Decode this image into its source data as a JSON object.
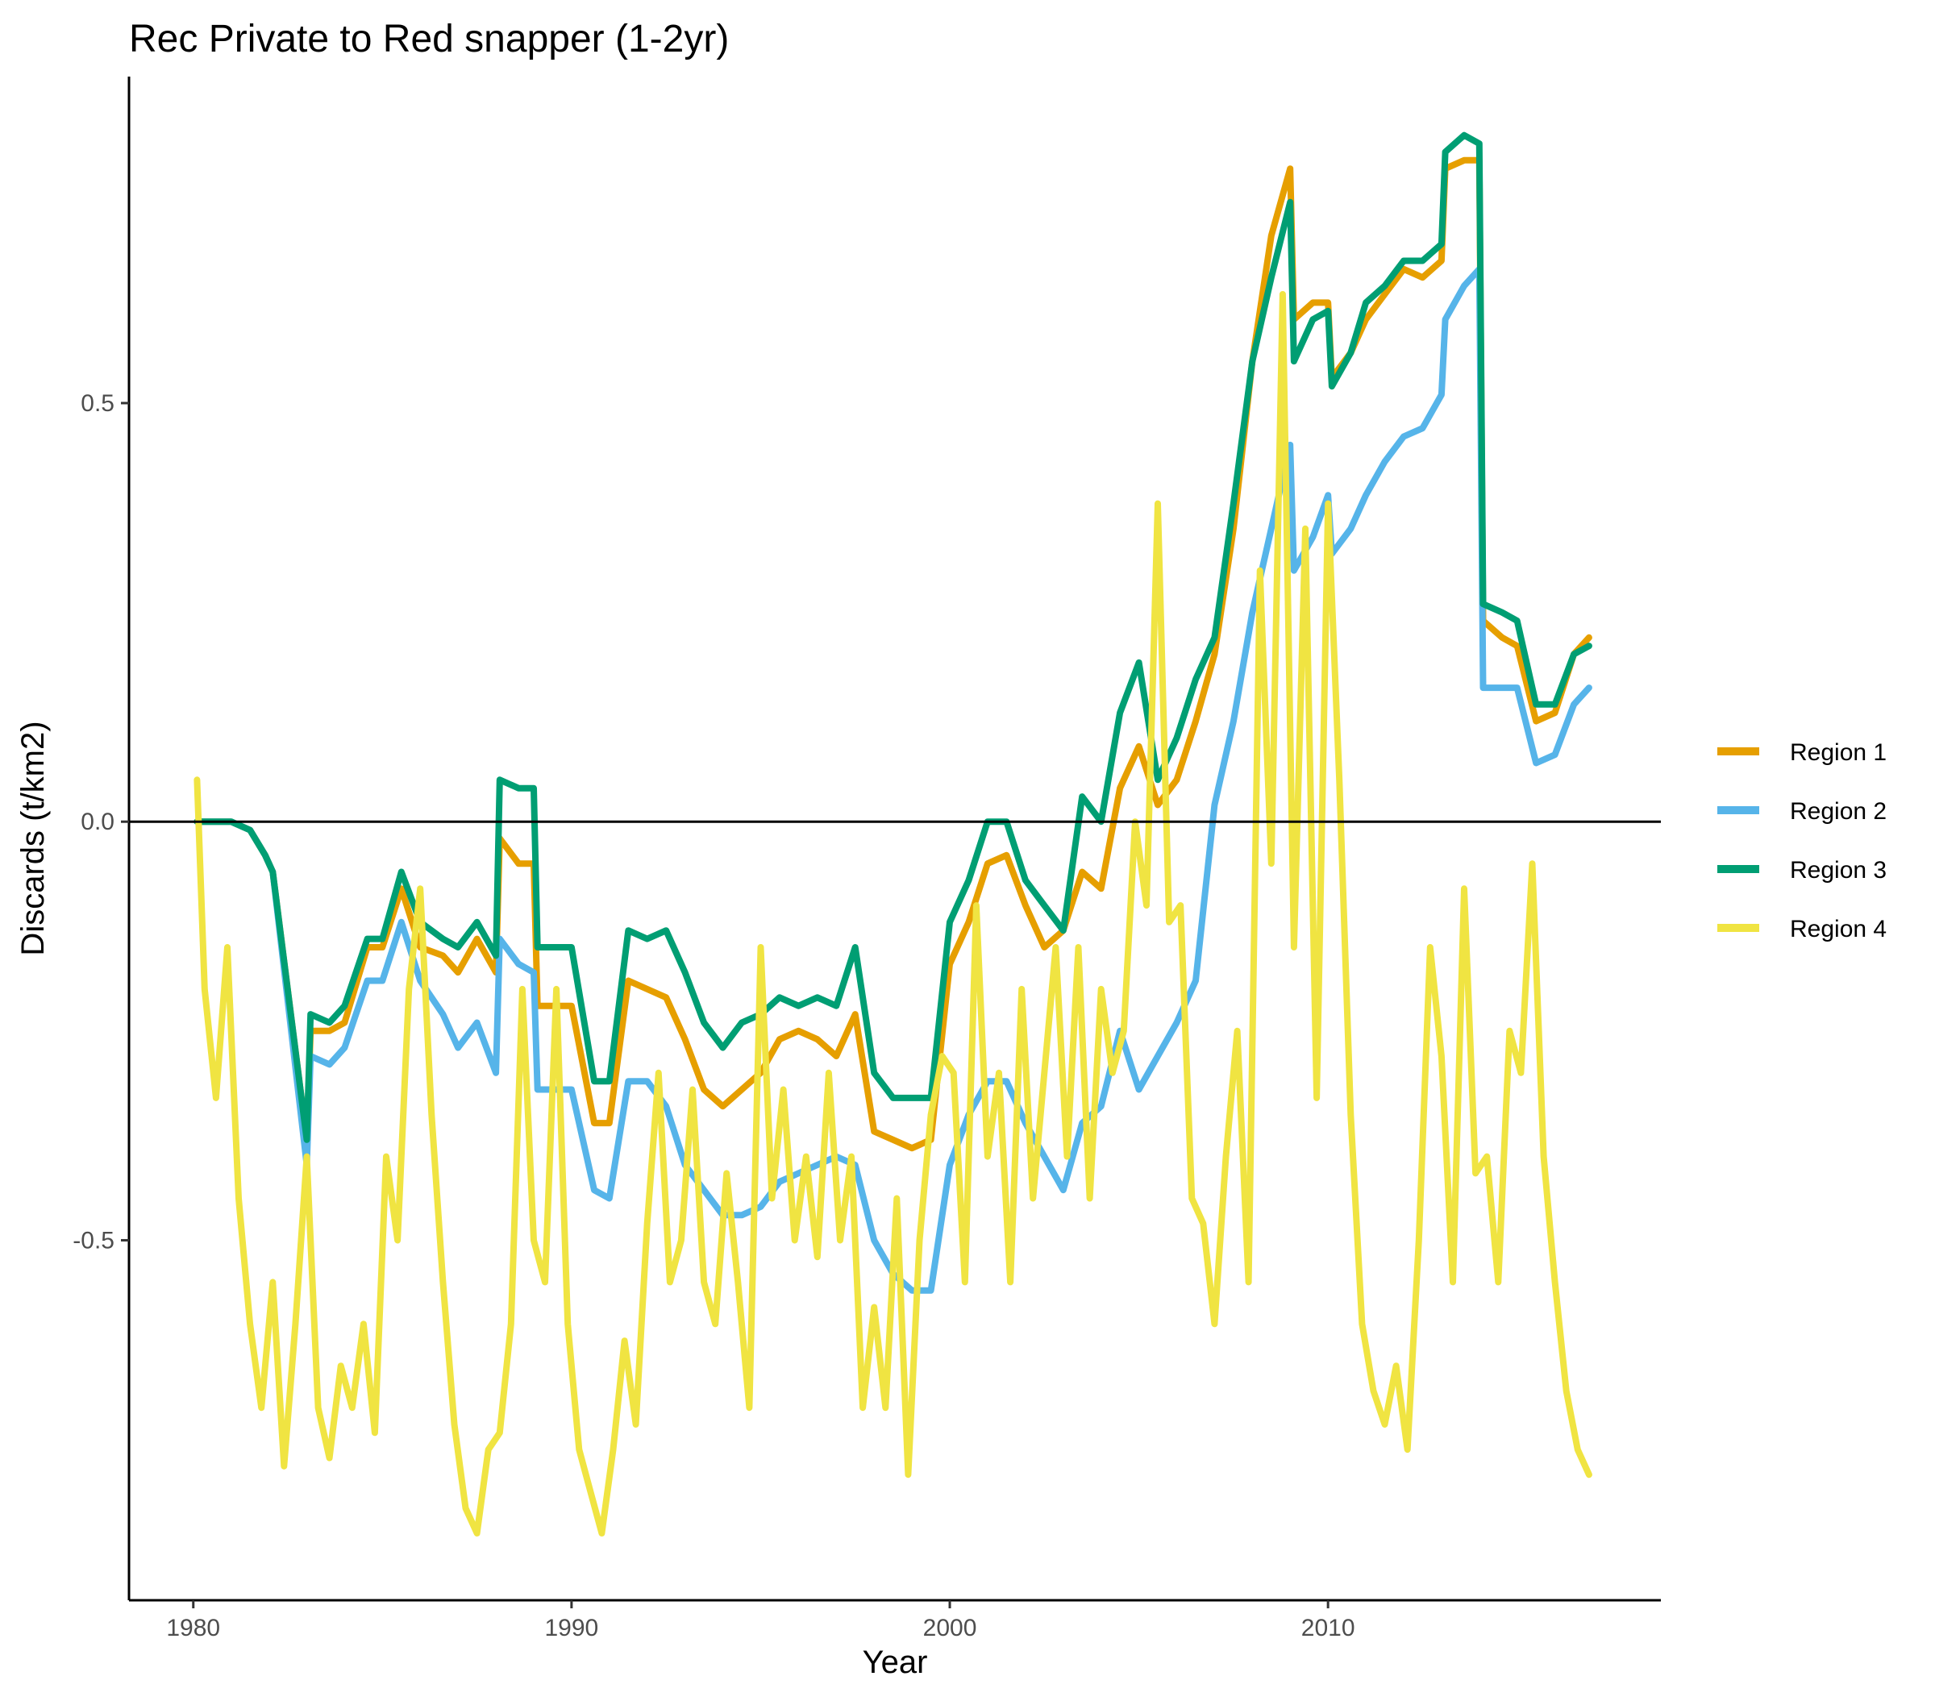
{
  "chart_data": {
    "type": "line",
    "title": "Rec Private to Red snapper (1-2yr)",
    "xlabel": "Year",
    "ylabel": "Discards (t/km2)",
    "xlim": [
      1978.3,
      2018.8
    ],
    "ylim": [
      -0.93,
      0.89
    ],
    "x_ticks": [
      1980,
      1990,
      2000,
      2010
    ],
    "x_tick_labels": [
      "1980",
      "1990",
      "2000",
      "2010"
    ],
    "y_ticks": [
      -0.5,
      0.0,
      0.5
    ],
    "y_tick_labels": [
      "-0.5",
      "0.0",
      "0.5"
    ],
    "zero_line": true,
    "grid": false,
    "legend_position": "right",
    "colors": {
      "Region 1": "#E69F00",
      "Region 2": "#56B4E9",
      "Region 3": "#009E73",
      "Region 4": "#F0E442"
    },
    "series": [
      {
        "name": "Region 1",
        "x": [
          1980.1,
          1980.5,
          1981.0,
          1981.5,
          1981.9,
          1982.1,
          1983.0,
          1983.1,
          1983.6,
          1984.0,
          1984.6,
          1985.0,
          1985.5,
          1986.0,
          1986.6,
          1987.0,
          1987.5,
          1988.0,
          1988.1,
          1988.6,
          1989.0,
          1989.1,
          1989.6,
          1990.0,
          1990.6,
          1991.0,
          1991.5,
          1992.0,
          1992.5,
          1993.0,
          1993.5,
          1994.0,
          1994.5,
          1995.0,
          1995.5,
          1996.0,
          1996.5,
          1997.0,
          1997.5,
          1998.0,
          1998.5,
          1999.0,
          1999.5,
          2000.0,
          2000.5,
          2001.0,
          2001.5,
          2002.0,
          2002.5,
          2003.0,
          2003.5,
          2004.0,
          2004.5,
          2005.0,
          2005.5,
          2006.0,
          2006.5,
          2007.0,
          2007.5,
          2008.0,
          2008.5,
          2009.0,
          2009.1,
          2009.6,
          2010.0,
          2010.1,
          2010.6,
          2011.0,
          2011.5,
          2012.0,
          2012.5,
          2013.0,
          2013.1,
          2013.6,
          2014.0,
          2014.1,
          2014.6,
          2015.0,
          2015.5,
          2016.0,
          2016.5,
          2016.9
        ],
        "y": [
          0.0,
          0.0,
          0.0,
          -0.01,
          -0.04,
          -0.06,
          -0.38,
          -0.25,
          -0.25,
          -0.24,
          -0.15,
          -0.15,
          -0.08,
          -0.15,
          -0.16,
          -0.18,
          -0.14,
          -0.18,
          -0.02,
          -0.05,
          -0.05,
          -0.22,
          -0.22,
          -0.22,
          -0.36,
          -0.36,
          -0.19,
          -0.2,
          -0.21,
          -0.26,
          -0.32,
          -0.34,
          -0.32,
          -0.3,
          -0.26,
          -0.25,
          -0.26,
          -0.28,
          -0.23,
          -0.37,
          -0.38,
          -0.39,
          -0.38,
          -0.17,
          -0.12,
          -0.05,
          -0.04,
          -0.1,
          -0.15,
          -0.13,
          -0.06,
          -0.08,
          0.04,
          0.09,
          0.02,
          0.05,
          0.12,
          0.2,
          0.35,
          0.55,
          0.7,
          0.78,
          0.6,
          0.62,
          0.62,
          0.53,
          0.56,
          0.6,
          0.63,
          0.66,
          0.65,
          0.67,
          0.78,
          0.79,
          0.79,
          0.24,
          0.22,
          0.21,
          0.12,
          0.13,
          0.2,
          0.22
        ]
      },
      {
        "name": "Region 2",
        "x": [
          1980.1,
          1980.5,
          1981.0,
          1981.5,
          1981.9,
          1982.1,
          1983.0,
          1983.1,
          1983.6,
          1984.0,
          1984.6,
          1985.0,
          1985.5,
          1986.0,
          1986.6,
          1987.0,
          1987.5,
          1988.0,
          1988.1,
          1988.6,
          1989.0,
          1989.1,
          1989.6,
          1990.0,
          1990.6,
          1991.0,
          1991.5,
          1992.0,
          1992.5,
          1993.0,
          1993.5,
          1994.0,
          1994.5,
          1995.0,
          1995.5,
          1996.0,
          1996.5,
          1997.0,
          1997.5,
          1998.0,
          1998.5,
          1999.0,
          1999.5,
          2000.0,
          2000.5,
          2001.0,
          2001.5,
          2002.0,
          2002.5,
          2003.0,
          2003.5,
          2004.0,
          2004.5,
          2005.0,
          2005.5,
          2006.0,
          2006.5,
          2007.0,
          2007.5,
          2008.0,
          2008.5,
          2009.0,
          2009.1,
          2009.6,
          2010.0,
          2010.1,
          2010.6,
          2011.0,
          2011.5,
          2012.0,
          2012.5,
          2013.0,
          2013.1,
          2013.6,
          2014.0,
          2014.1,
          2014.6,
          2015.0,
          2015.5,
          2016.0,
          2016.5,
          2016.9
        ],
        "y": [
          0.0,
          0.0,
          0.0,
          -0.01,
          -0.04,
          -0.06,
          -0.41,
          -0.28,
          -0.29,
          -0.27,
          -0.19,
          -0.19,
          -0.12,
          -0.19,
          -0.23,
          -0.27,
          -0.24,
          -0.3,
          -0.14,
          -0.17,
          -0.18,
          -0.32,
          -0.32,
          -0.32,
          -0.44,
          -0.45,
          -0.31,
          -0.31,
          -0.34,
          -0.41,
          -0.44,
          -0.47,
          -0.47,
          -0.46,
          -0.43,
          -0.42,
          -0.41,
          -0.4,
          -0.41,
          -0.5,
          -0.54,
          -0.56,
          -0.56,
          -0.41,
          -0.35,
          -0.31,
          -0.31,
          -0.36,
          -0.4,
          -0.44,
          -0.36,
          -0.34,
          -0.25,
          -0.32,
          -0.28,
          -0.24,
          -0.19,
          0.02,
          0.12,
          0.25,
          0.35,
          0.45,
          0.3,
          0.34,
          0.39,
          0.32,
          0.35,
          0.39,
          0.43,
          0.46,
          0.47,
          0.51,
          0.6,
          0.64,
          0.66,
          0.16,
          0.16,
          0.16,
          0.07,
          0.08,
          0.14,
          0.16
        ]
      },
      {
        "name": "Region 3",
        "x": [
          1980.1,
          1980.5,
          1981.0,
          1981.5,
          1981.9,
          1982.1,
          1983.0,
          1983.1,
          1983.6,
          1984.0,
          1984.6,
          1985.0,
          1985.5,
          1986.0,
          1986.6,
          1987.0,
          1987.5,
          1988.0,
          1988.1,
          1988.6,
          1989.0,
          1989.1,
          1989.6,
          1990.0,
          1990.6,
          1991.0,
          1991.5,
          1992.0,
          1992.5,
          1993.0,
          1993.5,
          1994.0,
          1994.5,
          1995.0,
          1995.5,
          1996.0,
          1996.5,
          1997.0,
          1997.5,
          1998.0,
          1998.5,
          1999.0,
          1999.5,
          2000.0,
          2000.5,
          2001.0,
          2001.5,
          2002.0,
          2002.5,
          2003.0,
          2003.5,
          2004.0,
          2004.5,
          2005.0,
          2005.5,
          2006.0,
          2006.5,
          2007.0,
          2007.5,
          2008.0,
          2008.5,
          2009.0,
          2009.1,
          2009.6,
          2010.0,
          2010.1,
          2010.6,
          2011.0,
          2011.5,
          2012.0,
          2012.5,
          2013.0,
          2013.1,
          2013.6,
          2014.0,
          2014.1,
          2014.6,
          2015.0,
          2015.5,
          2016.0,
          2016.5,
          2016.9
        ],
        "y": [
          0.0,
          0.0,
          0.0,
          -0.01,
          -0.04,
          -0.06,
          -0.38,
          -0.23,
          -0.24,
          -0.22,
          -0.14,
          -0.14,
          -0.06,
          -0.12,
          -0.14,
          -0.15,
          -0.12,
          -0.16,
          0.05,
          0.04,
          0.04,
          -0.15,
          -0.15,
          -0.15,
          -0.31,
          -0.31,
          -0.13,
          -0.14,
          -0.13,
          -0.18,
          -0.24,
          -0.27,
          -0.24,
          -0.23,
          -0.21,
          -0.22,
          -0.21,
          -0.22,
          -0.15,
          -0.3,
          -0.33,
          -0.33,
          -0.33,
          -0.12,
          -0.07,
          0.0,
          0.0,
          -0.07,
          -0.1,
          -0.13,
          0.03,
          0.0,
          0.13,
          0.19,
          0.05,
          0.1,
          0.17,
          0.22,
          0.38,
          0.55,
          0.65,
          0.74,
          0.55,
          0.6,
          0.61,
          0.52,
          0.56,
          0.62,
          0.64,
          0.67,
          0.67,
          0.69,
          0.8,
          0.82,
          0.81,
          0.26,
          0.25,
          0.24,
          0.14,
          0.14,
          0.2,
          0.21
        ]
      },
      {
        "name": "Region 4",
        "x": [
          1980.1,
          1980.3,
          1980.6,
          1980.9,
          1981.2,
          1981.5,
          1981.8,
          1982.1,
          1982.4,
          1982.7,
          1983.0,
          1983.3,
          1983.6,
          1983.9,
          1984.2,
          1984.5,
          1984.8,
          1985.1,
          1985.4,
          1985.7,
          1986.0,
          1986.3,
          1986.6,
          1986.9,
          1987.2,
          1987.5,
          1987.8,
          1988.1,
          1988.4,
          1988.7,
          1989.0,
          1989.3,
          1989.6,
          1989.9,
          1990.2,
          1990.5,
          1990.8,
          1991.1,
          1991.4,
          1991.7,
          1992.0,
          1992.3,
          1992.6,
          1992.9,
          1993.2,
          1993.5,
          1993.8,
          1994.1,
          1994.4,
          1994.7,
          1995.0,
          1995.3,
          1995.6,
          1995.9,
          1996.2,
          1996.5,
          1996.8,
          1997.1,
          1997.4,
          1997.7,
          1998.0,
          1998.3,
          1998.6,
          1998.9,
          1999.2,
          1999.5,
          1999.8,
          2000.1,
          2000.4,
          2000.7,
          2001.0,
          2001.3,
          2001.6,
          2001.9,
          2002.2,
          2002.5,
          2002.8,
          2003.1,
          2003.4,
          2003.7,
          2004.0,
          2004.3,
          2004.6,
          2004.9,
          2005.2,
          2005.5,
          2005.8,
          2006.1,
          2006.4,
          2006.7,
          2007.0,
          2007.3,
          2007.6,
          2007.9,
          2008.2,
          2008.5,
          2008.8,
          2009.1,
          2009.4,
          2009.7,
          2010.0,
          2010.3,
          2010.6,
          2010.9,
          2011.2,
          2011.5,
          2011.8,
          2012.1,
          2012.4,
          2012.7,
          2013.0,
          2013.3,
          2013.6,
          2013.9,
          2014.2,
          2014.5,
          2014.8,
          2015.1,
          2015.4,
          2015.7,
          2016.0,
          2016.3,
          2016.6,
          2016.9
        ],
        "y": [
          0.05,
          -0.2,
          -0.33,
          -0.15,
          -0.45,
          -0.6,
          -0.7,
          -0.55,
          -0.77,
          -0.6,
          -0.4,
          -0.7,
          -0.76,
          -0.65,
          -0.7,
          -0.6,
          -0.73,
          -0.4,
          -0.5,
          -0.2,
          -0.08,
          -0.35,
          -0.55,
          -0.72,
          -0.82,
          -0.85,
          -0.75,
          -0.73,
          -0.6,
          -0.2,
          -0.5,
          -0.55,
          -0.2,
          -0.6,
          -0.75,
          -0.8,
          -0.85,
          -0.75,
          -0.62,
          -0.72,
          -0.48,
          -0.3,
          -0.55,
          -0.5,
          -0.32,
          -0.55,
          -0.6,
          -0.42,
          -0.55,
          -0.7,
          -0.15,
          -0.45,
          -0.32,
          -0.5,
          -0.4,
          -0.52,
          -0.3,
          -0.5,
          -0.4,
          -0.7,
          -0.58,
          -0.7,
          -0.45,
          -0.78,
          -0.5,
          -0.35,
          -0.28,
          -0.3,
          -0.55,
          -0.1,
          -0.4,
          -0.3,
          -0.55,
          -0.2,
          -0.45,
          -0.3,
          -0.15,
          -0.4,
          -0.15,
          -0.45,
          -0.2,
          -0.3,
          -0.25,
          0.0,
          -0.1,
          0.38,
          -0.12,
          -0.1,
          -0.45,
          -0.48,
          -0.6,
          -0.4,
          -0.25,
          -0.55,
          0.3,
          -0.05,
          0.63,
          -0.15,
          0.35,
          -0.33,
          0.38,
          0.05,
          -0.35,
          -0.6,
          -0.68,
          -0.72,
          -0.65,
          -0.75,
          -0.5,
          -0.15,
          -0.28,
          -0.55,
          -0.08,
          -0.42,
          -0.4,
          -0.55,
          -0.25,
          -0.3,
          -0.05,
          -0.4,
          -0.55,
          -0.68,
          -0.75,
          -0.78
        ]
      }
    ]
  }
}
